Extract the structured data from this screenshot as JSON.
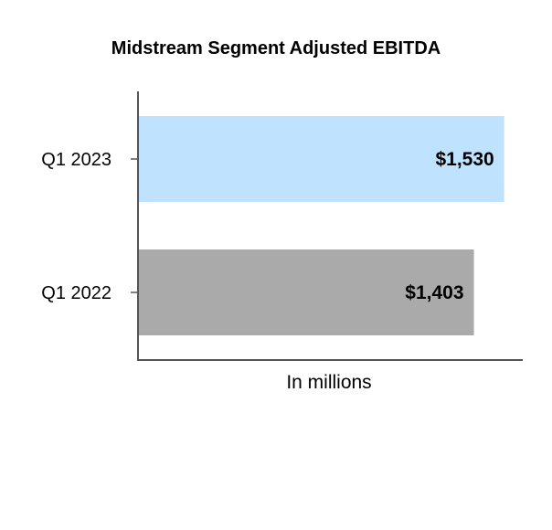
{
  "chart_data": {
    "type": "bar",
    "orientation": "horizontal",
    "title": "Midstream Segment Adjusted EBITDA",
    "xlabel": "In millions",
    "ylabel": "",
    "categories": [
      "Q1 2023",
      "Q1 2022"
    ],
    "values": [
      1530,
      1403
    ],
    "data_labels": [
      "$1,530",
      "$1,403"
    ],
    "colors": [
      "#bfe3ff",
      "#aaaaaa"
    ],
    "xlim": [
      0,
      1600
    ],
    "grid": false,
    "legend": "none"
  }
}
